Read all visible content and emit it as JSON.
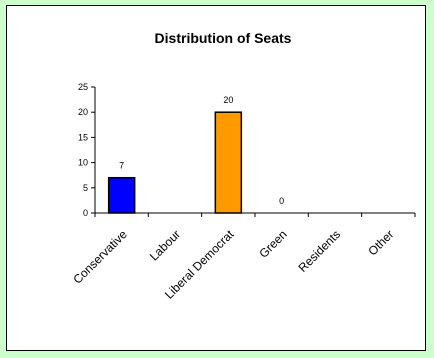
{
  "chart_data": {
    "type": "bar",
    "title": "Distribution of Seats",
    "categories": [
      "Conservative",
      "Labour",
      "Liberal Democrat",
      "Green",
      "Residents",
      "Other"
    ],
    "values": [
      7,
      null,
      20,
      0,
      null,
      null
    ],
    "data_labels": [
      "7",
      "",
      "20",
      "0",
      "",
      ""
    ],
    "bar_colors": [
      "#0000ff",
      null,
      "#ff9900",
      null,
      null,
      null
    ],
    "ylim": [
      0,
      25
    ],
    "yticks": [
      0,
      5,
      10,
      15,
      20,
      25
    ],
    "grid": false,
    "legend": "none"
  },
  "colors": {
    "background": "#ccffcc",
    "panel": "#ffffff",
    "conservative": "#0000ff",
    "liberal_democrat": "#ff9900"
  }
}
